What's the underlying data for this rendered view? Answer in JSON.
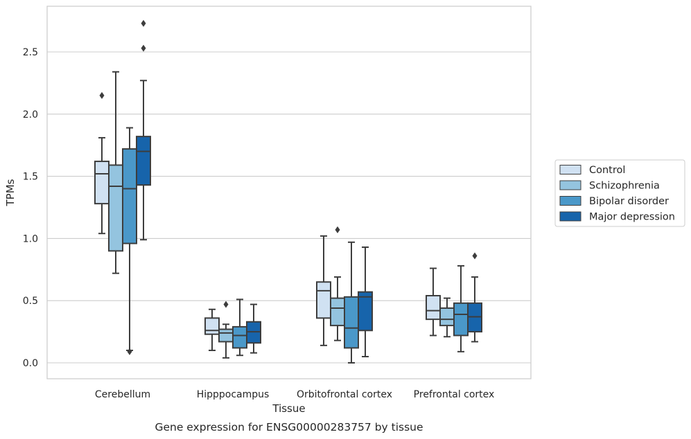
{
  "chart_data": {
    "type": "box",
    "xlabel": "Tissue",
    "ylabel": "TPMs",
    "caption": "Gene expression for ENSG00000283757 by tissue",
    "ylim": [
      -0.13,
      2.87
    ],
    "yticks": [
      0.0,
      0.5,
      1.0,
      1.5,
      2.0,
      2.5
    ],
    "ytick_labels": [
      "0.0",
      "0.5",
      "1.0",
      "1.5",
      "2.0",
      "2.5"
    ],
    "grid": "horizontal",
    "legend_position": "right",
    "categories": [
      "Cerebellum",
      "Hipppocampus",
      "Orbitofrontal cortex",
      "Prefrontal cortex"
    ],
    "series": [
      {
        "name": "Control",
        "color": "#d0e1f2",
        "boxes": [
          {
            "whisker_low": 1.04,
            "q1": 1.28,
            "median": 1.52,
            "q3": 1.62,
            "whisker_high": 1.81,
            "outliers": [
              2.15
            ]
          },
          {
            "whisker_low": 0.1,
            "q1": 0.23,
            "median": 0.26,
            "q3": 0.36,
            "whisker_high": 0.43,
            "outliers": []
          },
          {
            "whisker_low": 0.14,
            "q1": 0.36,
            "median": 0.58,
            "q3": 0.65,
            "whisker_high": 1.02,
            "outliers": []
          },
          {
            "whisker_low": 0.22,
            "q1": 0.35,
            "median": 0.42,
            "q3": 0.54,
            "whisker_high": 0.76,
            "outliers": []
          }
        ]
      },
      {
        "name": "Schizophrenia",
        "color": "#94c4df",
        "boxes": [
          {
            "whisker_low": 0.72,
            "q1": 0.9,
            "median": 1.42,
            "q3": 1.59,
            "whisker_high": 2.34,
            "outliers": []
          },
          {
            "whisker_low": 0.04,
            "q1": 0.17,
            "median": 0.24,
            "q3": 0.27,
            "whisker_high": 0.31,
            "outliers": [
              0.47
            ]
          },
          {
            "whisker_low": 0.18,
            "q1": 0.3,
            "median": 0.44,
            "q3": 0.52,
            "whisker_high": 0.69,
            "outliers": [
              1.07
            ]
          },
          {
            "whisker_low": 0.21,
            "q1": 0.3,
            "median": 0.35,
            "q3": 0.44,
            "whisker_high": 0.52,
            "outliers": []
          }
        ]
      },
      {
        "name": "Bipolar disorder",
        "color": "#4a98c9",
        "boxes": [
          {
            "whisker_low": 0.1,
            "q1": 0.96,
            "median": 1.4,
            "q3": 1.72,
            "whisker_high": 1.89,
            "outliers": [
              0.09
            ]
          },
          {
            "whisker_low": 0.06,
            "q1": 0.12,
            "median": 0.22,
            "q3": 0.29,
            "whisker_high": 0.51,
            "outliers": []
          },
          {
            "whisker_low": 0.0,
            "q1": 0.12,
            "median": 0.28,
            "q3": 0.53,
            "whisker_high": 0.97,
            "outliers": []
          },
          {
            "whisker_low": 0.09,
            "q1": 0.22,
            "median": 0.39,
            "q3": 0.48,
            "whisker_high": 0.78,
            "outliers": []
          }
        ]
      },
      {
        "name": "Major depression",
        "color": "#1764ab",
        "boxes": [
          {
            "whisker_low": 0.99,
            "q1": 1.43,
            "median": 1.7,
            "q3": 1.82,
            "whisker_high": 2.27,
            "outliers": [
              2.53,
              2.73
            ]
          },
          {
            "whisker_low": 0.08,
            "q1": 0.16,
            "median": 0.25,
            "q3": 0.33,
            "whisker_high": 0.47,
            "outliers": []
          },
          {
            "whisker_low": 0.05,
            "q1": 0.26,
            "median": 0.53,
            "q3": 0.57,
            "whisker_high": 0.93,
            "outliers": []
          },
          {
            "whisker_low": 0.17,
            "q1": 0.25,
            "median": 0.37,
            "q3": 0.48,
            "whisker_high": 0.69,
            "outliers": [
              0.86
            ]
          }
        ]
      }
    ]
  }
}
